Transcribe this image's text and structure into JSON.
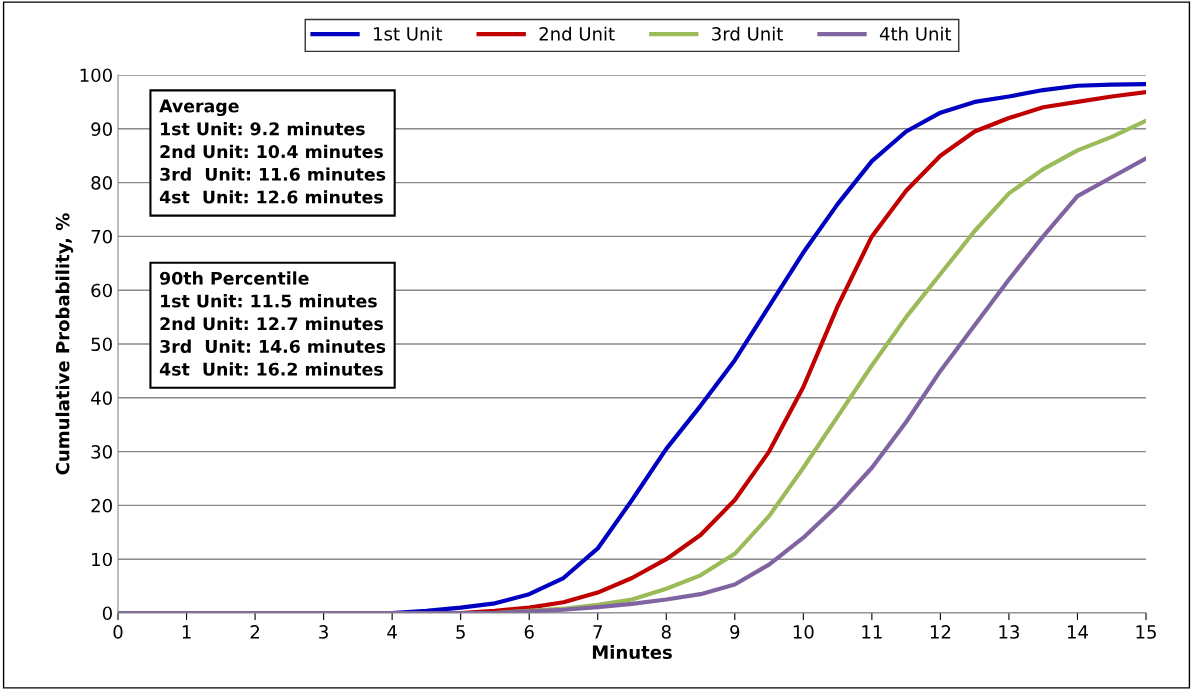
{
  "chart_data": {
    "type": "line",
    "xlabel": "Minutes",
    "ylabel": "Cumulative Probability, %",
    "x": [
      0,
      0.5,
      1,
      1.5,
      2,
      2.5,
      3,
      3.5,
      4,
      4.5,
      5,
      5.5,
      6,
      6.5,
      7,
      7.5,
      8,
      8.5,
      9,
      9.5,
      10,
      10.5,
      11,
      11.5,
      12,
      12.5,
      13,
      13.5,
      14,
      14.5,
      15
    ],
    "series": [
      {
        "name": "1st Unit",
        "color": "#0000c0",
        "values": [
          null,
          null,
          null,
          null,
          null,
          null,
          null,
          0,
          0,
          0.4,
          1,
          1.8,
          3.5,
          6.5,
          12,
          21,
          30.5,
          38.5,
          47,
          57,
          67,
          76,
          84,
          89.5,
          93,
          95,
          96,
          97.2,
          98,
          98.2,
          98.3
        ]
      },
      {
        "name": "2nd Unit",
        "color": "#c00000",
        "values": [
          null,
          null,
          null,
          null,
          null,
          null,
          null,
          null,
          null,
          0,
          0,
          0.4,
          1,
          2,
          3.8,
          6.5,
          10,
          14.5,
          21,
          30,
          42,
          57,
          70,
          78.5,
          85,
          89.5,
          92,
          94,
          95,
          96,
          96.8
        ]
      },
      {
        "name": "3rd Unit",
        "color": "#9bbb59",
        "values": [
          null,
          null,
          null,
          null,
          null,
          null,
          null,
          null,
          null,
          null,
          0,
          0,
          0.4,
          0.8,
          1.5,
          2.5,
          4.5,
          7,
          11,
          18,
          27,
          36.5,
          46,
          55,
          63,
          71,
          78,
          82.5,
          86,
          88.5,
          91.5
        ]
      },
      {
        "name": "4th Unit",
        "color": "#8064a2",
        "values": [
          0,
          0,
          0,
          0,
          0,
          0,
          0,
          0,
          0,
          0,
          0,
          0,
          0.3,
          0.6,
          1.1,
          1.7,
          2.5,
          3.5,
          5.3,
          9,
          14,
          20,
          27,
          35.5,
          45,
          53.5,
          62,
          70,
          77.5,
          81,
          84.5
        ]
      }
    ],
    "xlim": [
      0,
      15
    ],
    "xticks": [
      0,
      1,
      2,
      3,
      4,
      5,
      6,
      7,
      8,
      9,
      10,
      11,
      12,
      13,
      14,
      15
    ],
    "ylim": [
      0,
      100
    ],
    "yticks": [
      0,
      10,
      20,
      30,
      40,
      50,
      60,
      70,
      80,
      90,
      100
    ],
    "grid": "y",
    "legend": "top",
    "marker": "none",
    "line_style": "solid",
    "annotations": [
      "Average\n1st Unit: 9.2 minutes\n2nd Unit: 10.4 minutes\n3rd  Unit: 11.6 minutes\n4st  Unit: 12.6 minutes",
      "90th Percentile\n1st Unit: 11.5 minutes\n2nd Unit: 12.7 minutes\n3rd  Unit: 14.6 minutes\n4st  Unit: 16.2 minutes"
    ]
  }
}
